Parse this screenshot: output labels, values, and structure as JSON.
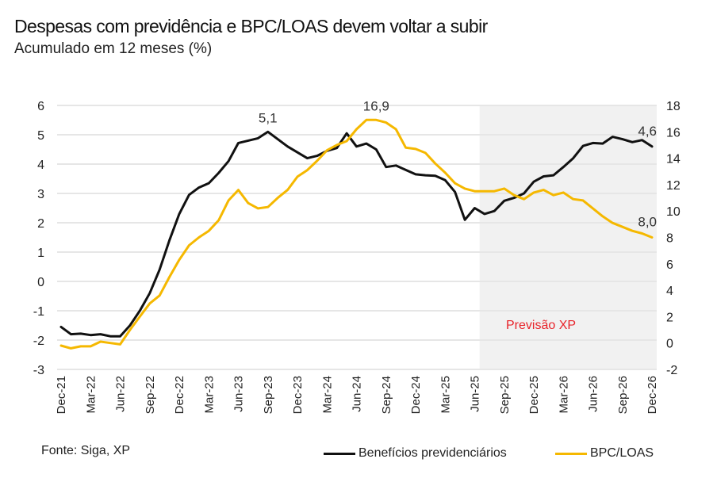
{
  "header": {
    "title": "Despesas com previdência e BPC/LOAS devem voltar a subir",
    "subtitle": "Acumulado em 12 meses (%)"
  },
  "footer": {
    "source": "Fonte: Siga, XP"
  },
  "chart_data": {
    "type": "line",
    "title": "Despesas com previdência e BPC/LOAS devem voltar a subir",
    "subtitle": "Acumulado em 12 meses (%)",
    "xlabel": "",
    "ylabel_left": "",
    "ylabel_right": "",
    "ylim_left": [
      -3,
      6
    ],
    "ylim_right": [
      -2,
      18
    ],
    "yticks_left": [
      "6",
      "5",
      "4",
      "3",
      "2",
      "1",
      "0",
      "-1",
      "-2",
      "-3"
    ],
    "yticks_right": [
      "18",
      "16",
      "14",
      "12",
      "10",
      "8",
      "6",
      "4",
      "2",
      "0",
      "-2"
    ],
    "grid": true,
    "legend_position": "bottom-right",
    "x": [
      "Dec-21",
      "Jan-22",
      "Feb-22",
      "Mar-22",
      "Apr-22",
      "May-22",
      "Jun-22",
      "Jul-22",
      "Aug-22",
      "Sep-22",
      "Oct-22",
      "Nov-22",
      "Dec-22",
      "Jan-23",
      "Feb-23",
      "Mar-23",
      "Apr-23",
      "May-23",
      "Jun-23",
      "Jul-23",
      "Aug-23",
      "Sep-23",
      "Oct-23",
      "Nov-23",
      "Dec-23",
      "Jan-24",
      "Feb-24",
      "Mar-24",
      "Apr-24",
      "May-24",
      "Jun-24",
      "Jul-24",
      "Aug-24",
      "Sep-24",
      "Oct-24",
      "Nov-24",
      "Dec-24",
      "Jan-25",
      "Feb-25",
      "Mar-25",
      "Apr-25",
      "May-25",
      "Jun-25",
      "Jul-25",
      "Aug-25",
      "Sep-25",
      "Oct-25",
      "Nov-25",
      "Dec-25",
      "Jan-26",
      "Feb-26",
      "Mar-26",
      "Apr-26",
      "May-26",
      "Jun-26",
      "Jul-26",
      "Aug-26",
      "Sep-26",
      "Oct-26",
      "Nov-26",
      "Dec-26"
    ],
    "xtick_labels": [
      "Dec-21",
      "Mar-22",
      "Jun-22",
      "Sep-22",
      "Dec-22",
      "Mar-23",
      "Jun-23",
      "Sep-23",
      "Dec-23",
      "Mar-24",
      "Jun-24",
      "Sep-24",
      "Dec-24",
      "Mar-25",
      "Jun-25",
      "Sep-25",
      "Dec-25",
      "Mar-26",
      "Jun-26",
      "Sep-26",
      "Dec-26"
    ],
    "series": [
      {
        "name": "Benefícios previdenciários",
        "axis": "left",
        "color": "#111111",
        "values": [
          -1.55,
          -1.8,
          -1.78,
          -1.83,
          -1.8,
          -1.87,
          -1.87,
          -1.5,
          -1.0,
          -0.4,
          0.4,
          1.4,
          2.3,
          2.95,
          3.2,
          3.35,
          3.7,
          4.1,
          4.72,
          4.8,
          4.88,
          5.1,
          4.85,
          4.6,
          4.4,
          4.2,
          4.28,
          4.45,
          4.55,
          5.05,
          4.6,
          4.7,
          4.5,
          3.9,
          3.95,
          3.8,
          3.65,
          3.62,
          3.6,
          3.45,
          3.05,
          2.1,
          2.5,
          2.3,
          2.4,
          2.75,
          2.85,
          3.0,
          3.4,
          3.58,
          3.62,
          3.9,
          4.2,
          4.62,
          4.72,
          4.7,
          4.93,
          4.85,
          4.75,
          4.82,
          4.6
        ]
      },
      {
        "name": "BPC/LOAS",
        "axis": "right",
        "color": "#F5B800",
        "values": [
          -0.2,
          -0.4,
          -0.25,
          -0.25,
          0.1,
          0.0,
          -0.1,
          1.0,
          2.0,
          3.0,
          3.6,
          5.0,
          6.3,
          7.4,
          8.0,
          8.5,
          9.3,
          10.8,
          11.6,
          10.6,
          10.2,
          10.3,
          11.0,
          11.6,
          12.6,
          13.1,
          13.8,
          14.6,
          15.0,
          15.3,
          16.2,
          16.9,
          16.9,
          16.7,
          16.2,
          14.8,
          14.7,
          14.4,
          13.6,
          12.9,
          12.1,
          11.7,
          11.5,
          11.5,
          11.5,
          11.7,
          11.2,
          10.9,
          11.4,
          11.6,
          11.2,
          11.4,
          10.9,
          10.8,
          10.2,
          9.6,
          9.1,
          8.8,
          8.5,
          8.3,
          8.0
        ]
      }
    ],
    "data_labels": [
      {
        "series": "Benefícios previdenciários",
        "x": "Sep-23",
        "text": "5,1"
      },
      {
        "series": "BPC/LOAS",
        "x": "Aug-24",
        "text": "16,9"
      },
      {
        "series": "Benefícios previdenciários",
        "x": "Dec-26",
        "text": "4,6"
      },
      {
        "series": "BPC/LOAS",
        "x": "Dec-26",
        "text": "8,0"
      }
    ],
    "shaded_region": {
      "from": "Jul-25",
      "to": "Dec-26",
      "label": "Previsão XP",
      "label_color": "#E8232A",
      "fill_color": "#F1F1F1"
    }
  }
}
